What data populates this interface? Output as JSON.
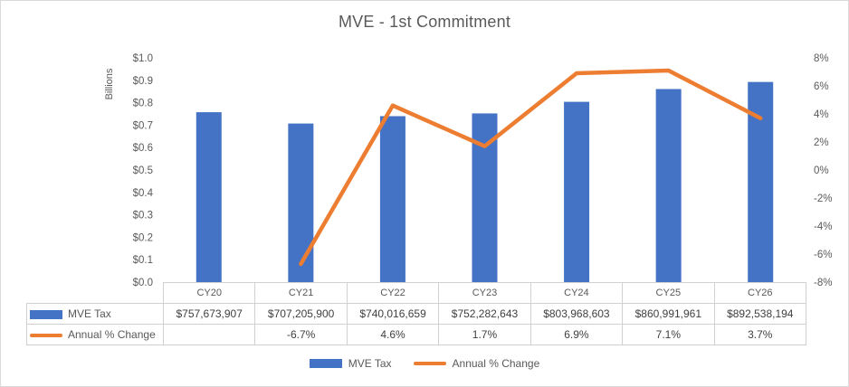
{
  "chart_data": {
    "type": "combo-bar-line",
    "title": "MVE - 1st Commitment",
    "categories": [
      "CY20",
      "CY21",
      "CY22",
      "CY23",
      "CY24",
      "CY25",
      "CY26"
    ],
    "series": [
      {
        "name": "MVE Tax",
        "chart_type": "bar",
        "axis": "left",
        "color": "#4472C4",
        "values": [
          757673907,
          707205900,
          740016659,
          752282643,
          803968603,
          860991961,
          892538194
        ],
        "display_values": [
          "$757,673,907",
          "$707,205,900",
          "$740,016,659",
          "$752,282,643",
          "$803,968,603",
          "$860,991,961",
          "$892,538,194"
        ]
      },
      {
        "name": "Annual % Change",
        "chart_type": "line",
        "axis": "right",
        "color": "#ED7D31",
        "values": [
          null,
          -6.7,
          4.6,
          1.7,
          6.9,
          7.1,
          3.7
        ],
        "display_values": [
          "",
          "-6.7%",
          "4.6%",
          "1.7%",
          "6.9%",
          "7.1%",
          "3.7%"
        ]
      }
    ],
    "ylabel_left": "Billions",
    "left_axis_ticks": [
      "$1.0",
      "$0.9",
      "$0.8",
      "$0.7",
      "$0.6",
      "$0.5",
      "$0.4",
      "$0.3",
      "$0.2",
      "$0.1",
      "$0.0"
    ],
    "right_axis_ticks": [
      "8%",
      "6%",
      "4%",
      "2%",
      "0%",
      "-2%",
      "-4%",
      "-6%",
      "-8%"
    ],
    "ylim_left_billions": [
      0,
      1.0
    ],
    "ylim_right_percent": [
      -8,
      8
    ],
    "gridlines": false,
    "legend_position": "bottom",
    "data_table_shown": true
  },
  "colors": {
    "bar_series": "#4472C4",
    "line_series": "#ED7D31",
    "axis_text": "#595959",
    "table_text": "#404040",
    "table_border": "#d0d0d0",
    "frame_border": "#d9d9d9"
  }
}
